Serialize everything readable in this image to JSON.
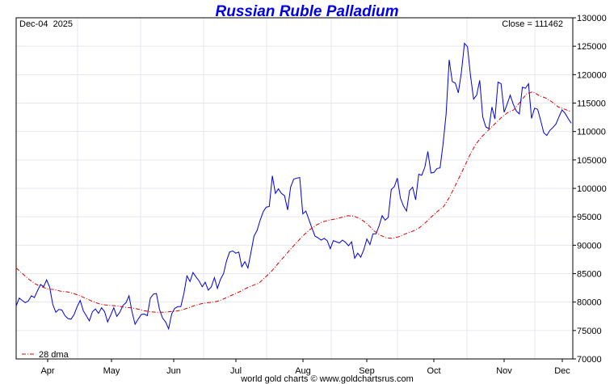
{
  "chart_data": {
    "type": "line",
    "title": "Russian Ruble Palladium",
    "date_label": "Dec-04  2025",
    "close_label": "Close = 111462",
    "footer": "world gold charts © www.goldchartsrus.com",
    "legend": {
      "ma_label": "28 dma",
      "placement": "bottom-left"
    },
    "colors": {
      "price": "#0000dd",
      "ma": "#dd0000",
      "title": "#0000ee",
      "grid": "#e6e6f0"
    },
    "grid": true,
    "xlabels": [
      "Apr",
      "May",
      "Jun",
      "Jul",
      "Aug",
      "Sep",
      "Oct",
      "Nov",
      "Dec"
    ],
    "ylim": [
      70000,
      130000
    ],
    "ytick_labels": [
      "70000",
      "75000",
      "80000",
      "85000",
      "90000",
      "95000",
      "100000",
      "105000",
      "110000",
      "115000",
      "120000",
      "125000",
      "130000"
    ],
    "series": [
      {
        "name": "price",
        "values": [
          79300,
          80700,
          80300,
          79900,
          80200,
          81100,
          80800,
          82000,
          83100,
          82700,
          83900,
          82600,
          79600,
          78200,
          78700,
          78600,
          77600,
          77100,
          77000,
          77800,
          79200,
          80300,
          78500,
          77600,
          76700,
          78300,
          78800,
          78000,
          79000,
          78300,
          76500,
          77700,
          79000,
          77500,
          78200,
          79400,
          79900,
          81100,
          78300,
          76100,
          77000,
          77800,
          77900,
          77600,
          80700,
          81400,
          81500,
          78700,
          77200,
          76500,
          75300,
          77900,
          78900,
          79200,
          79200,
          81500,
          84600,
          83600,
          85200,
          84400,
          83700,
          82700,
          83500,
          82100,
          82700,
          84300,
          82400,
          84000,
          85000,
          87300,
          88800,
          89000,
          88600,
          88800,
          86200,
          87100,
          86000,
          88800,
          91600,
          92600,
          94400,
          95900,
          96700,
          96800,
          102200,
          99100,
          99900,
          99100,
          98700,
          96200,
          100200,
          101600,
          101800,
          101900,
          95500,
          96000,
          94500,
          93000,
          91600,
          91300,
          90900,
          91200,
          90800,
          89400,
          90800,
          90600,
          90400,
          90900,
          90500,
          89900,
          90600,
          87700,
          88600,
          87900,
          89200,
          91100,
          90100,
          92000,
          92000,
          93400,
          95200,
          94400,
          94900,
          99800,
          100300,
          101800,
          98300,
          96900,
          96000,
          99600,
          100200,
          98000,
          102500,
          102300,
          103700,
          106500,
          102700,
          102800,
          103500,
          103600,
          107900,
          113100,
          122600,
          118800,
          118500,
          116800,
          120400,
          125500,
          124900,
          119800,
          115700,
          116400,
          119000,
          112600,
          110800,
          110500,
          114300,
          112200,
          118700,
          118400,
          113400,
          114800,
          116400,
          114800,
          113600,
          113100,
          117800,
          117600,
          118400,
          112300,
          114100,
          113900,
          111900,
          109800,
          109300,
          110200,
          110700,
          111300,
          112600,
          113800,
          113200,
          112300,
          111462
        ]
      },
      {
        "name": "28 dma",
        "values": [
          86000,
          85000,
          84000,
          83200,
          82700,
          82300,
          82200,
          81900,
          81800,
          81500,
          81100,
          80600,
          80100,
          79700,
          79500,
          79400,
          79300,
          79100,
          79000,
          78800,
          78500,
          78300,
          78200,
          78200,
          78300,
          78400,
          78600,
          79000,
          79400,
          79700,
          79900,
          80000,
          80300,
          80800,
          81300,
          81800,
          82400,
          82900,
          83300,
          84300,
          85400,
          86700,
          88000,
          89300,
          90500,
          91700,
          92700,
          93500,
          94100,
          94400,
          94600,
          94900,
          95200,
          95100,
          94600,
          93800,
          92600,
          91800,
          91300,
          91200,
          91500,
          92000,
          92400,
          92900,
          93800,
          94900,
          95900,
          96800,
          98600,
          100900,
          103200,
          105600,
          107700,
          109100,
          110200,
          111300,
          112400,
          113300,
          113800,
          115200,
          116600,
          117000,
          116300,
          115900,
          115200,
          114300,
          113900,
          113500
        ]
      }
    ]
  }
}
